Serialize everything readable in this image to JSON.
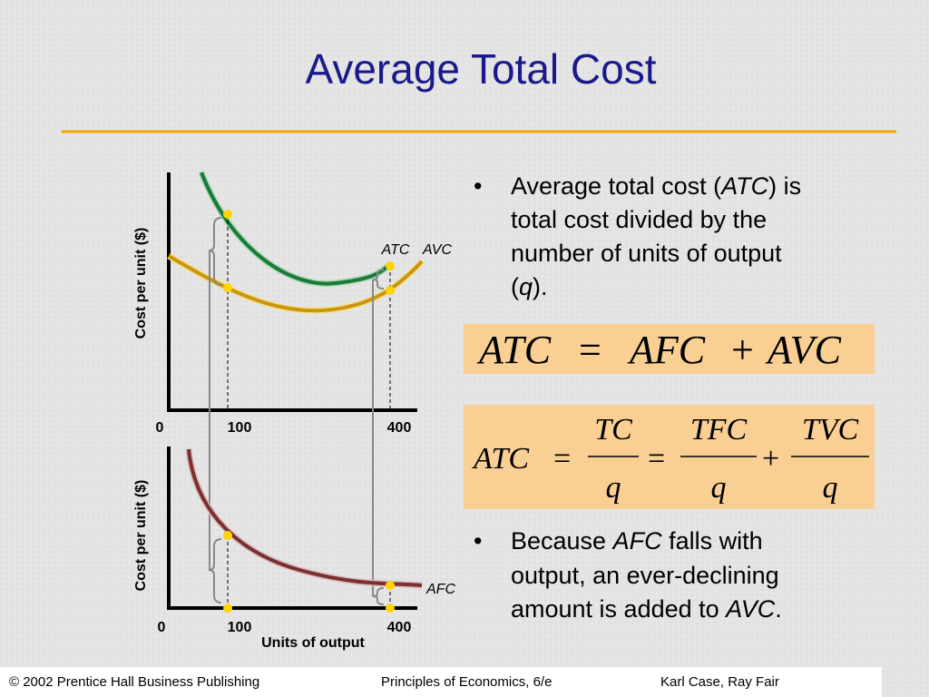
{
  "title": "Average Total Cost",
  "top_chart": {
    "y_label": "Cost per unit ($)",
    "x_ticks": [
      "0",
      "100",
      "400"
    ],
    "curve_labels": [
      "ATC",
      "AVC"
    ]
  },
  "bottom_chart": {
    "y_label": "Cost per unit ($)",
    "x_ticks": [
      "0",
      "100",
      "400"
    ],
    "x_label": "Units of output",
    "curve_labels": [
      "AFC"
    ]
  },
  "bullets": [
    [
      "Average total cost (",
      "ATC",
      ") is",
      "total cost divided by the",
      "number of units of output",
      "(",
      "q",
      ")."
    ],
    [
      "Because ",
      "AFC",
      " falls with",
      "output, an ever-declining",
      "amount is added to ",
      "AVC",
      "."
    ]
  ],
  "formula_1": [
    "ATC",
    "=",
    "AFC",
    "+",
    "AVC"
  ],
  "formula_2": [
    "ATC",
    "=",
    "TC",
    "q",
    "=",
    "TFC",
    "q",
    "+",
    "TVC",
    "q"
  ],
  "footer": [
    "© 2002 Prentice Hall Business Publishing",
    "Principles of Economics, 6/e",
    "Karl Case, Ray Fair"
  ]
}
